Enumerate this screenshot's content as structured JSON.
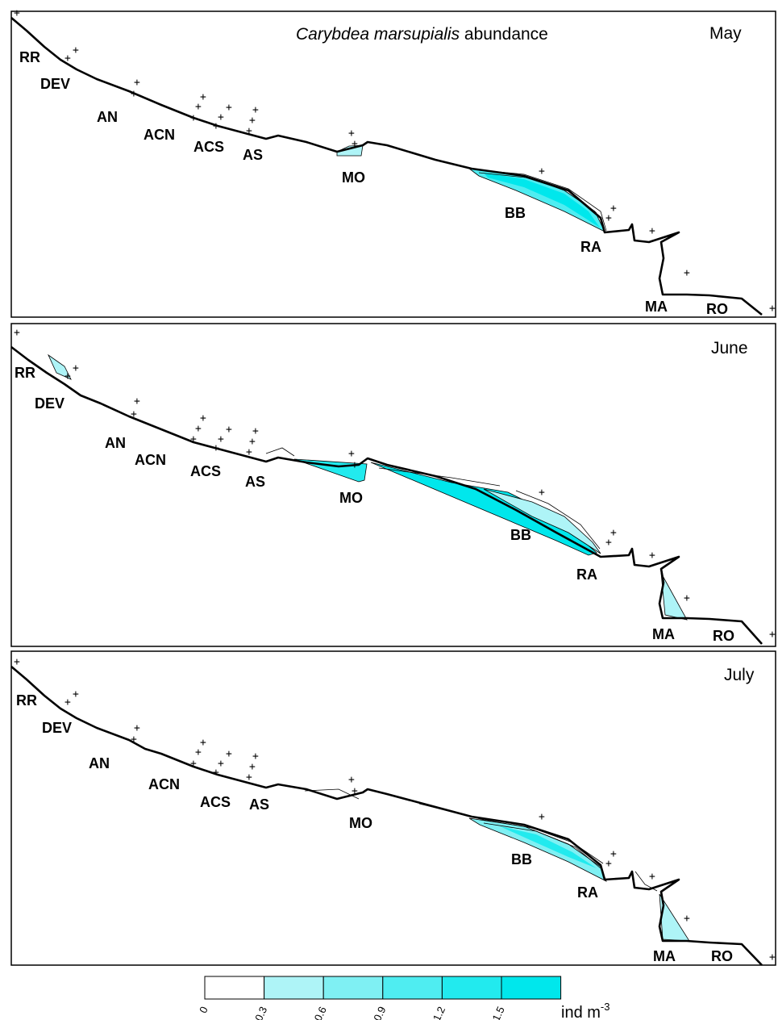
{
  "title": {
    "species": "Carybdea marsupialis",
    "suffix": " abundance"
  },
  "panels": [
    {
      "month": "May",
      "sites": [
        "RR",
        "DEV",
        "AN",
        "ACN",
        "ACS",
        "AS",
        "MO",
        "BB",
        "RA",
        "MA",
        "RO"
      ]
    },
    {
      "month": "June",
      "sites": [
        "RR",
        "DEV",
        "AN",
        "ACN",
        "ACS",
        "AS",
        "MO",
        "BB",
        "RA",
        "MA",
        "RO"
      ]
    },
    {
      "month": "July",
      "sites": [
        "RR",
        "DEV",
        "AN",
        "ACN",
        "ACS",
        "AS",
        "MO",
        "BB",
        "RA",
        "MA",
        "RO"
      ]
    }
  ],
  "legend": {
    "ticks": [
      "0",
      "0.3",
      "0.6",
      "0.9",
      "1.2",
      "1.5"
    ],
    "unit": "ind m",
    "unit_exp": "-3",
    "colors": [
      "#ffffff",
      "#aef4f7",
      "#7ff0f3",
      "#4fedf1",
      "#22eaee",
      "#00e7ec"
    ]
  },
  "colors": {
    "low": "#aef4f7",
    "mid": "#4fedf1",
    "high": "#00e7ec"
  }
}
